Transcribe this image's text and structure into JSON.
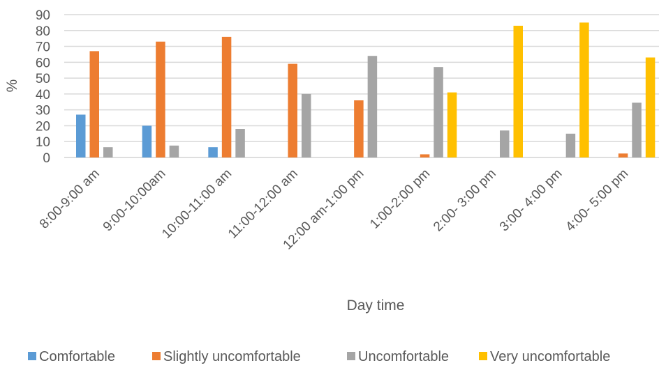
{
  "chart_data": {
    "type": "bar",
    "title": "",
    "xlabel": "Day time",
    "ylabel": "%",
    "ylim": [
      0,
      90
    ],
    "yticks": [
      0,
      10,
      20,
      30,
      40,
      50,
      60,
      70,
      80,
      90
    ],
    "grid": true,
    "legend_position": "bottom",
    "categories": [
      "8:00-9:00 am",
      "9:00-10:00am",
      "10:00-11:00 am",
      "11:00-12:00 am",
      "12:00 am-1:00 pm",
      "1:00-2:00 pm",
      "2:00- 3:00 pm",
      "3:00- 4:00 pm",
      "4:00- 5:00 pm"
    ],
    "series": [
      {
        "name": "Comfortable",
        "color": "#5B9BD5",
        "values": [
          27,
          20,
          6.5,
          0,
          0,
          0,
          0,
          0,
          0
        ]
      },
      {
        "name": "Slightly uncomfortable",
        "color": "#ED7D31",
        "values": [
          67,
          73,
          76,
          59,
          36,
          2,
          0,
          0,
          2.5
        ]
      },
      {
        "name": "Uncomfortable",
        "color": "#A5A5A5",
        "values": [
          6.5,
          7.5,
          18,
          40,
          64,
          57,
          17,
          15,
          34.5
        ]
      },
      {
        "name": "Very uncomfortable",
        "color": "#FFC000",
        "values": [
          0,
          0,
          0,
          0,
          0,
          41,
          83,
          85,
          63
        ]
      }
    ]
  }
}
